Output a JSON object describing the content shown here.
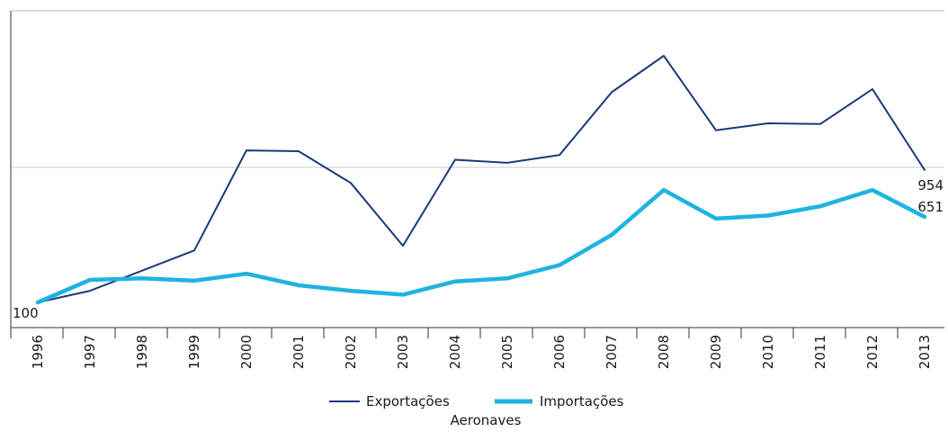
{
  "chart_data": {
    "type": "line",
    "title": "",
    "xlabel": "Aeronaves",
    "ylabel": "",
    "ylim": [
      100,
      1450
    ],
    "ygrid_values": [
      1050
    ],
    "grid": "horizontal",
    "categories": [
      "1996",
      "1997",
      "1998",
      "1999",
      "2000",
      "2001",
      "2002",
      "2003",
      "2004",
      "2005",
      "2006",
      "2007",
      "2008",
      "2009",
      "2010",
      "2011",
      "2012",
      "2013"
    ],
    "series": [
      {
        "name": "Exportações",
        "color": "#1b3a7a",
        "values": [
          100,
          175,
          305,
          435,
          1080,
          1075,
          870,
          465,
          1020,
          1000,
          1050,
          1455,
          1690,
          1210,
          1255,
          1250,
          1475,
          954
        ],
        "end_label": "954"
      },
      {
        "name": "Importações",
        "color": "#1fb3e0",
        "values": [
          100,
          245,
          255,
          240,
          285,
          210,
          175,
          150,
          235,
          255,
          340,
          535,
          825,
          640,
          660,
          720,
          825,
          651
        ],
        "end_label": "651"
      }
    ],
    "start_label": "100",
    "legend_position": "bottom-center"
  }
}
